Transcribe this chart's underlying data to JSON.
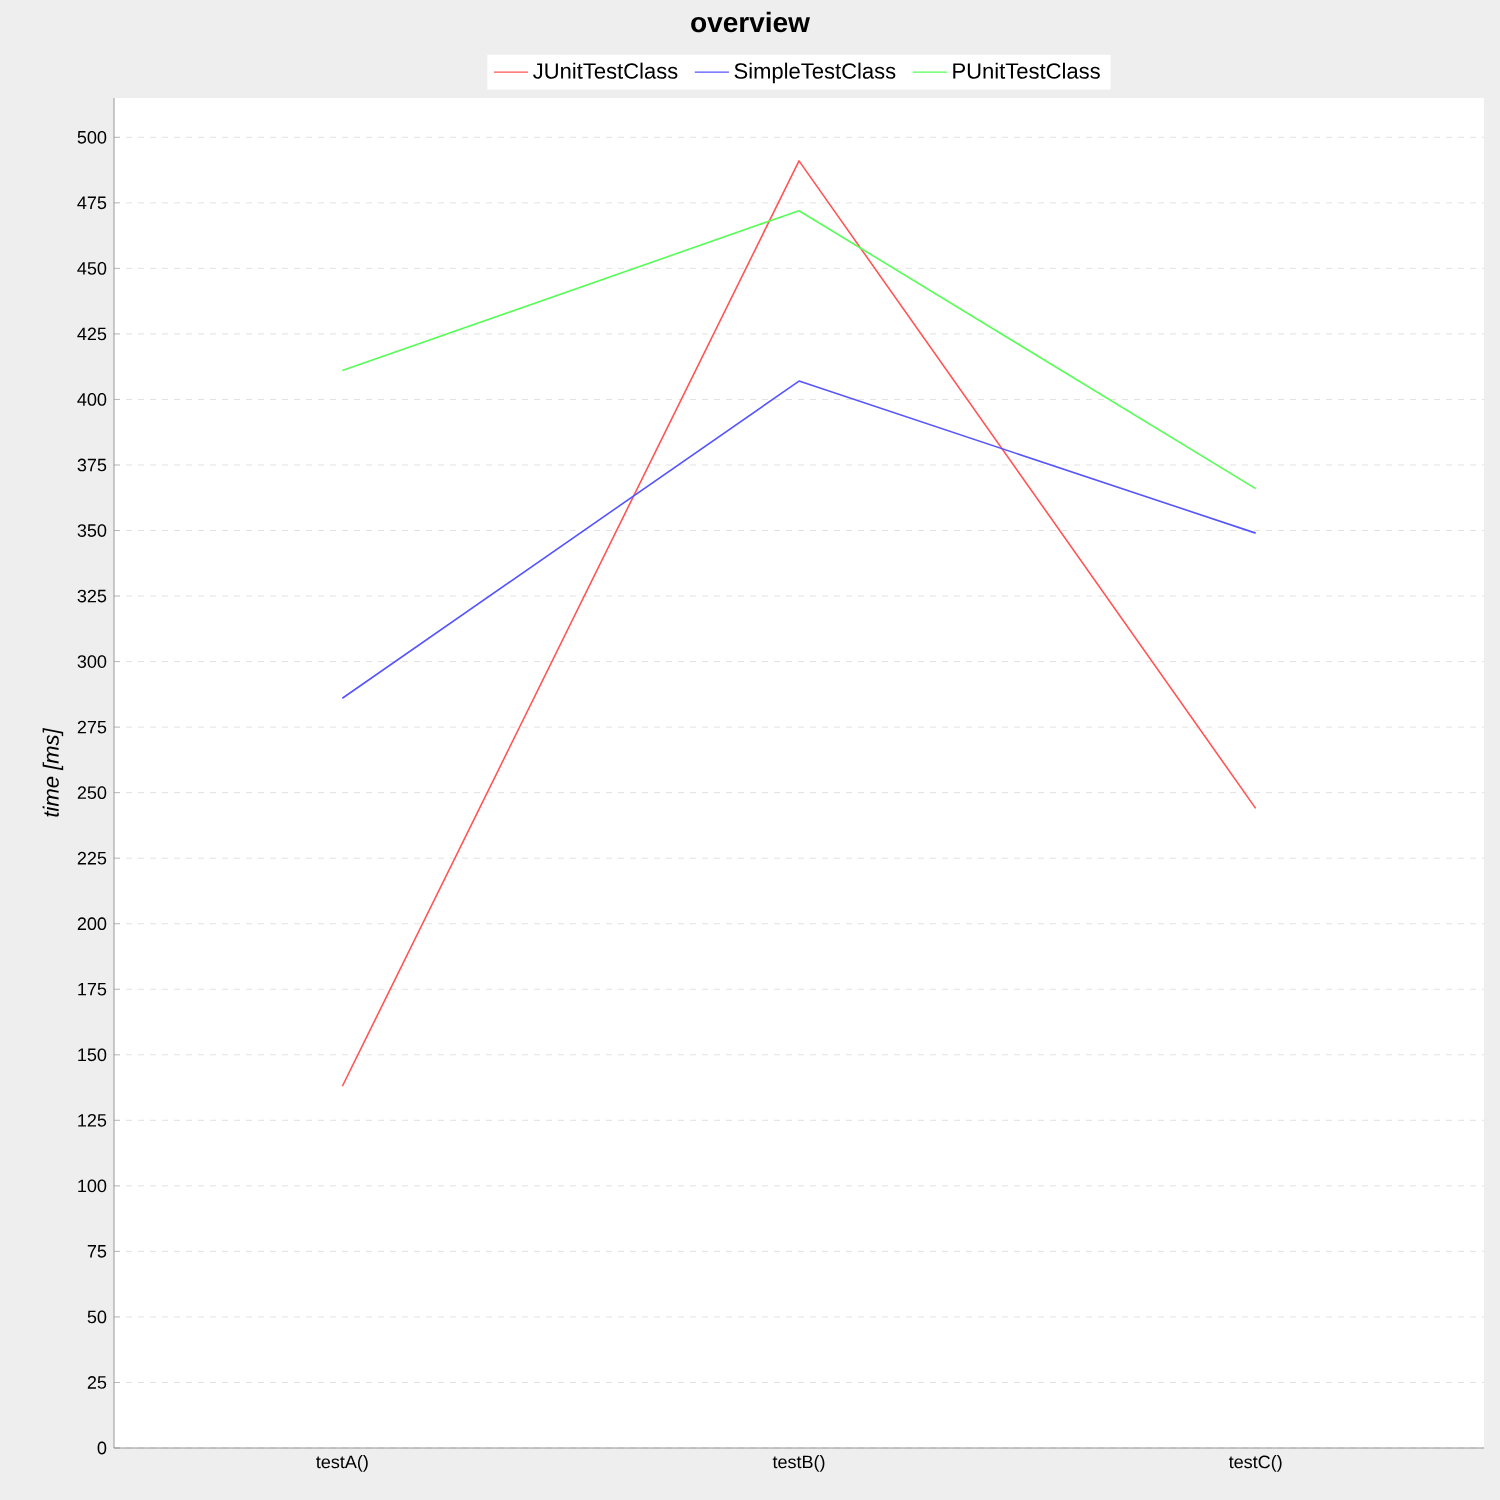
{
  "chart_data": {
    "type": "line",
    "title": "overview",
    "ylabel": "time [ms]",
    "categories": [
      "testA()",
      "testB()",
      "testC()"
    ],
    "series": [
      {
        "name": "JUnitTestClass",
        "color": "#ff5555",
        "values": [
          138,
          491,
          244
        ]
      },
      {
        "name": "SimpleTestClass",
        "color": "#5555ff",
        "values": [
          286,
          407,
          349
        ]
      },
      {
        "name": "PUnitTestClass",
        "color": "#55ff55",
        "values": [
          411,
          472,
          366
        ]
      }
    ],
    "ylim": [
      0,
      515
    ],
    "yticks": [
      0,
      25,
      50,
      75,
      100,
      125,
      150,
      175,
      200,
      225,
      250,
      275,
      300,
      325,
      350,
      375,
      400,
      425,
      450,
      475,
      500
    ],
    "grid": "y",
    "legend": "top",
    "marker": "none",
    "line_style": "solid"
  }
}
